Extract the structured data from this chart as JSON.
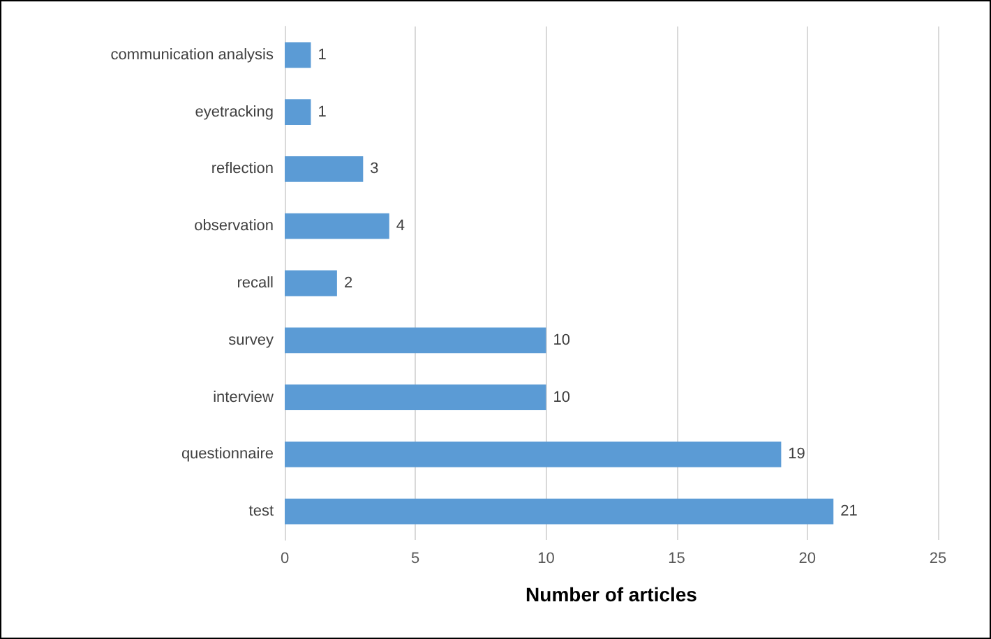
{
  "chart_data": {
    "type": "bar",
    "orientation": "horizontal",
    "xlabel": "Number of articles",
    "categories": [
      "communication analysis",
      "eyetracking",
      "reflection",
      "observation",
      "recall",
      "survey",
      "interview",
      "questionnaire",
      "test"
    ],
    "values": [
      1,
      1,
      3,
      4,
      2,
      10,
      10,
      19,
      21
    ],
    "color": "#5b9bd5",
    "xlim": [
      0,
      25
    ],
    "xticks": [
      0,
      5,
      10,
      15,
      20,
      25
    ],
    "grid": "x",
    "data_labels": true
  }
}
